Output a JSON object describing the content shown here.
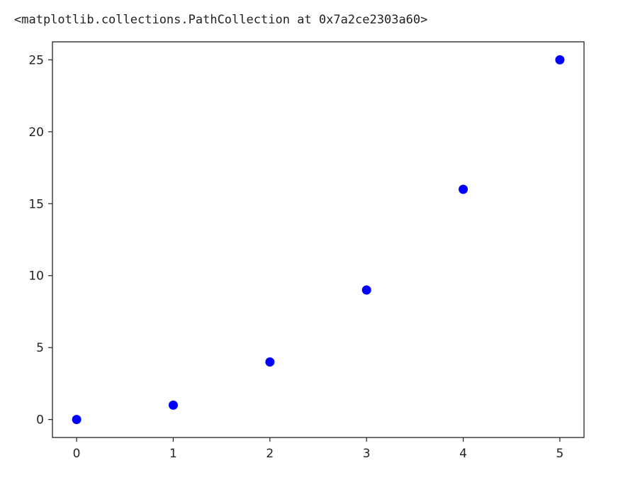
{
  "output": {
    "repr_text": "<matplotlib.collections.PathCollection at 0x7a2ce2303a60>"
  },
  "chart_data": {
    "type": "scatter",
    "x": [
      0,
      1,
      2,
      3,
      4,
      5
    ],
    "y": [
      0,
      1,
      4,
      9,
      16,
      25
    ],
    "xlim": [
      -0.25,
      5.25
    ],
    "ylim": [
      -1.25,
      26.25
    ],
    "x_ticks": [
      0,
      1,
      2,
      3,
      4,
      5
    ],
    "y_ticks": [
      0,
      5,
      10,
      15,
      20,
      25
    ],
    "x_tick_labels": [
      "0",
      "1",
      "2",
      "3",
      "4",
      "5"
    ],
    "y_tick_labels": [
      "0",
      "5",
      "10",
      "15",
      "20",
      "25"
    ],
    "title": "",
    "xlabel": "",
    "ylabel": "",
    "grid": false,
    "marker_color": "#0000ff",
    "axes_color": "#222222"
  }
}
